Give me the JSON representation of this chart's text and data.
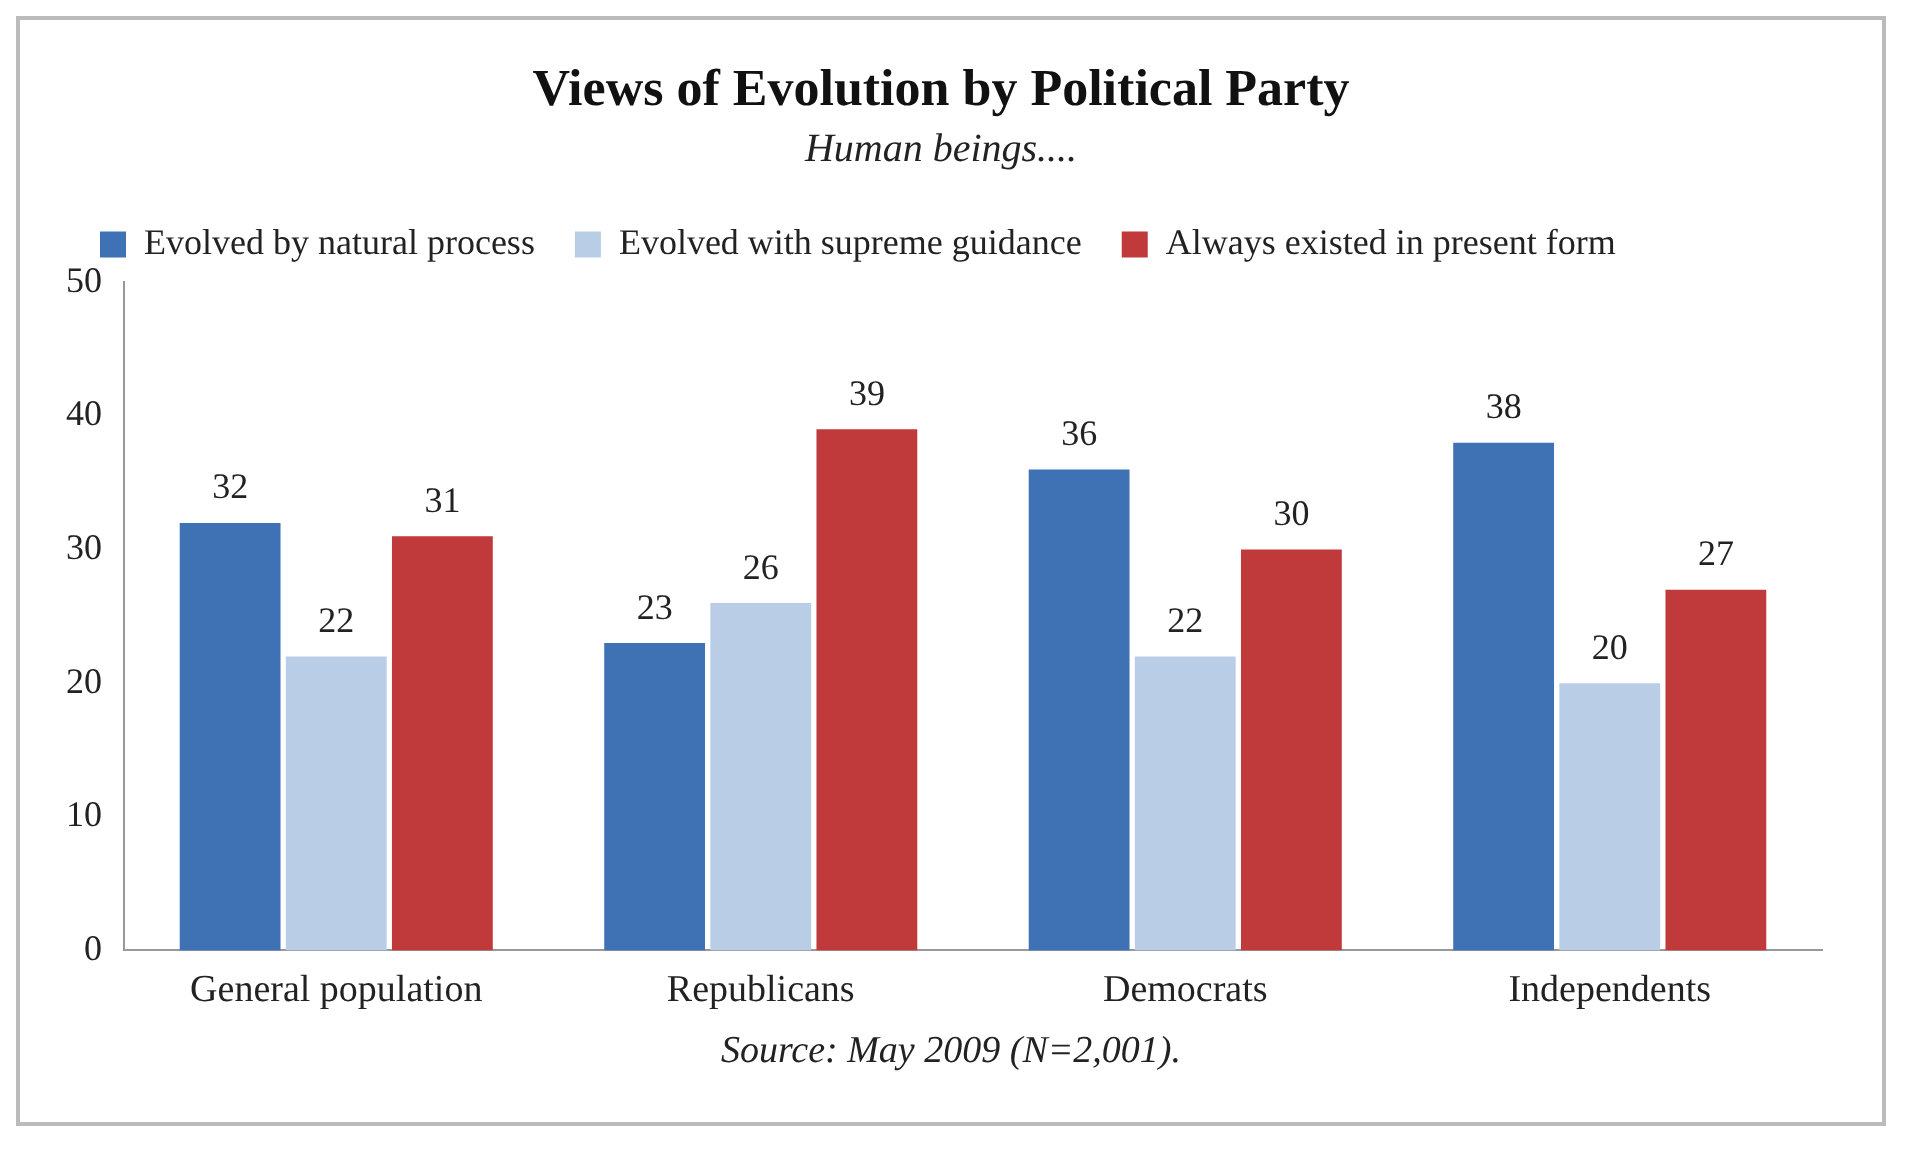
{
  "chart_data": {
    "type": "bar",
    "title": "Views of Evolution by Political Party",
    "subtitle": "Human beings....",
    "categories": [
      "General population",
      "Republicans",
      "Democrats",
      "Independents"
    ],
    "series": [
      {
        "name": "Evolved by natural process",
        "color": "#3f72b5",
        "values": [
          32,
          23,
          36,
          38
        ]
      },
      {
        "name": "Evolved with supreme guidance",
        "color": "#b9cde6",
        "values": [
          22,
          26,
          22,
          20
        ]
      },
      {
        "name": "Always existed in present form",
        "color": "#c0393b",
        "values": [
          31,
          39,
          30,
          27
        ]
      }
    ],
    "ylim": [
      0,
      50
    ],
    "yticks": [
      0,
      10,
      20,
      30,
      40,
      50
    ],
    "grid": false,
    "legend": "top",
    "data_labels": true,
    "annotations": [
      "Source: May 2009 (N=2,001)."
    ]
  }
}
